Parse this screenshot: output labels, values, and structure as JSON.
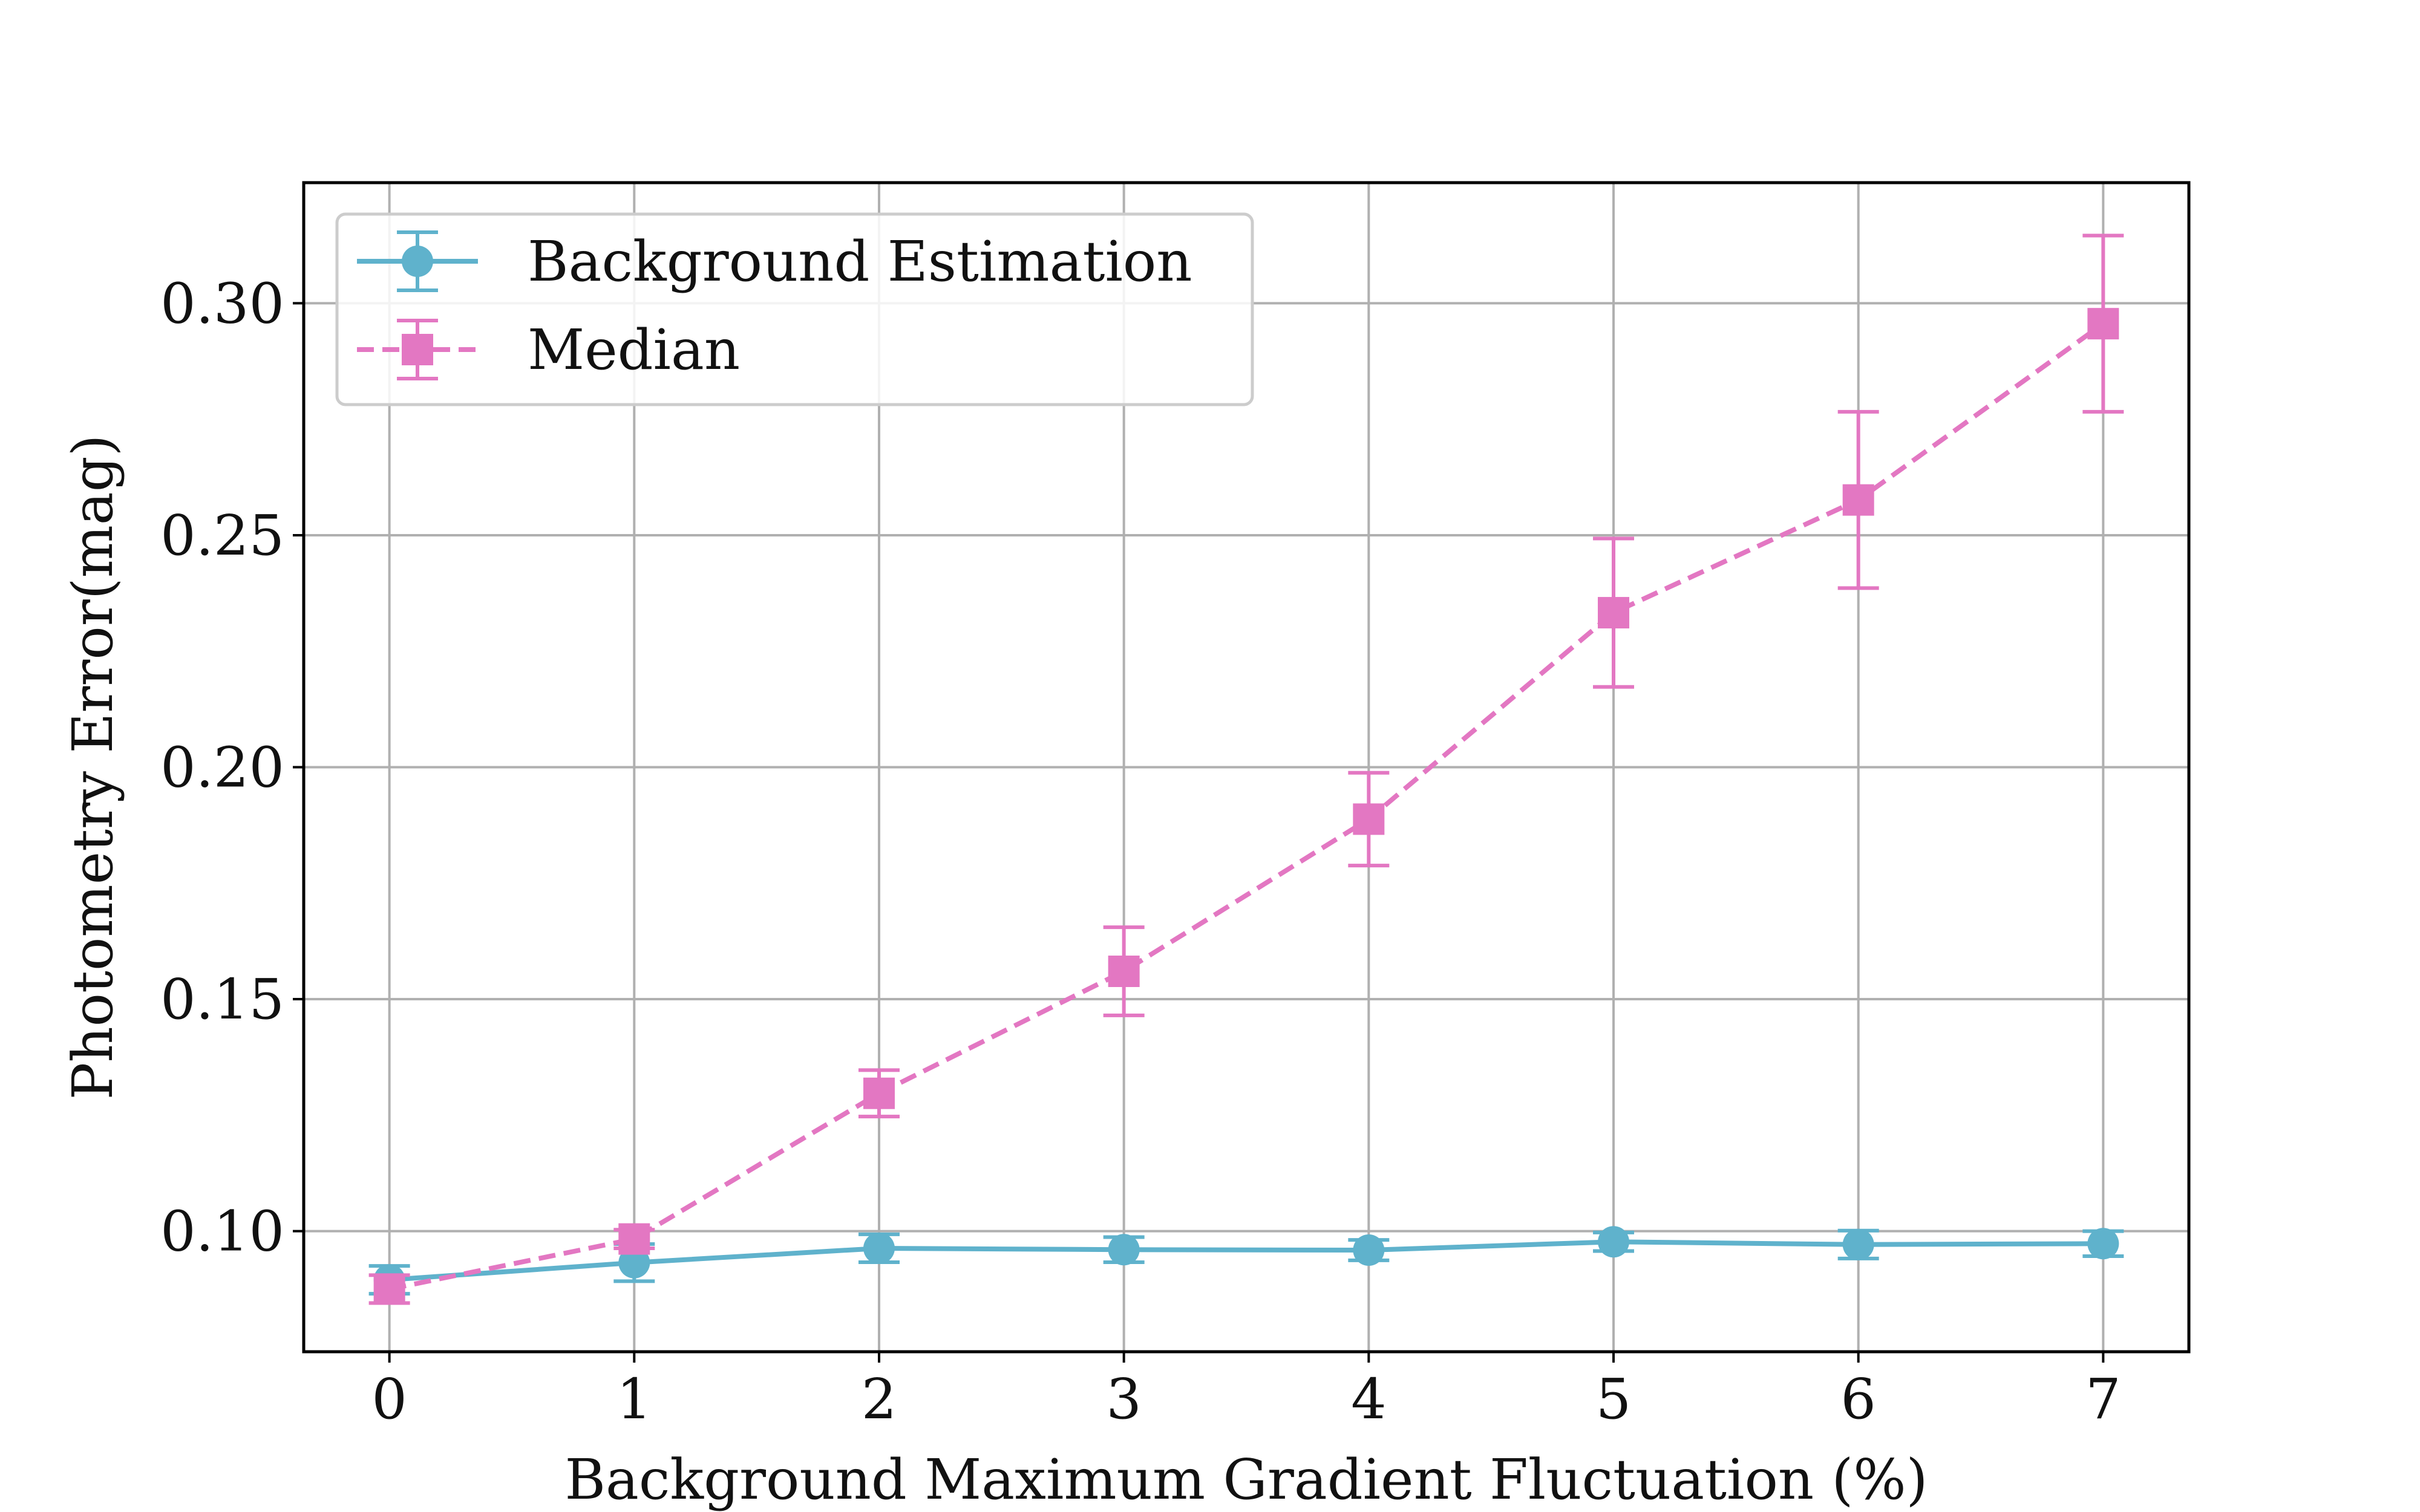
{
  "chart_data": {
    "type": "line",
    "title": "",
    "xlabel": "Background Maximum Gradient Fluctuation (%)",
    "ylabel": "Photometry Error(mag)",
    "x": [
      0,
      1,
      2,
      3,
      4,
      5,
      6,
      7
    ],
    "x_ticks": [
      "0",
      "1",
      "2",
      "3",
      "4",
      "5",
      "6",
      "7"
    ],
    "y_ticks": [
      "0.10",
      "0.15",
      "0.20",
      "0.25",
      "0.30"
    ],
    "xlim": [
      -0.35,
      7.35
    ],
    "ylim": [
      0.074,
      0.326
    ],
    "grid": true,
    "legend_position": "upper-left",
    "series": [
      {
        "name": "Background Estimation",
        "color": "#5fb2cc",
        "linestyle": "solid",
        "marker": "circle",
        "values": [
          0.0895,
          0.0932,
          0.0963,
          0.096,
          0.0959,
          0.0977,
          0.0971,
          0.0973
        ],
        "errors": [
          0.003,
          0.004,
          0.003,
          0.0027,
          0.0022,
          0.002,
          0.003,
          0.0027
        ]
      },
      {
        "name": "Median",
        "color": "#e377c2",
        "linestyle": "dashed",
        "marker": "square",
        "values": [
          0.0875,
          0.0983,
          0.1297,
          0.156,
          0.1888,
          0.2333,
          0.2576,
          0.2956
        ],
        "errors": [
          0.003,
          0.002,
          0.005,
          0.0095,
          0.01,
          0.016,
          0.019,
          0.019
        ]
      }
    ]
  }
}
